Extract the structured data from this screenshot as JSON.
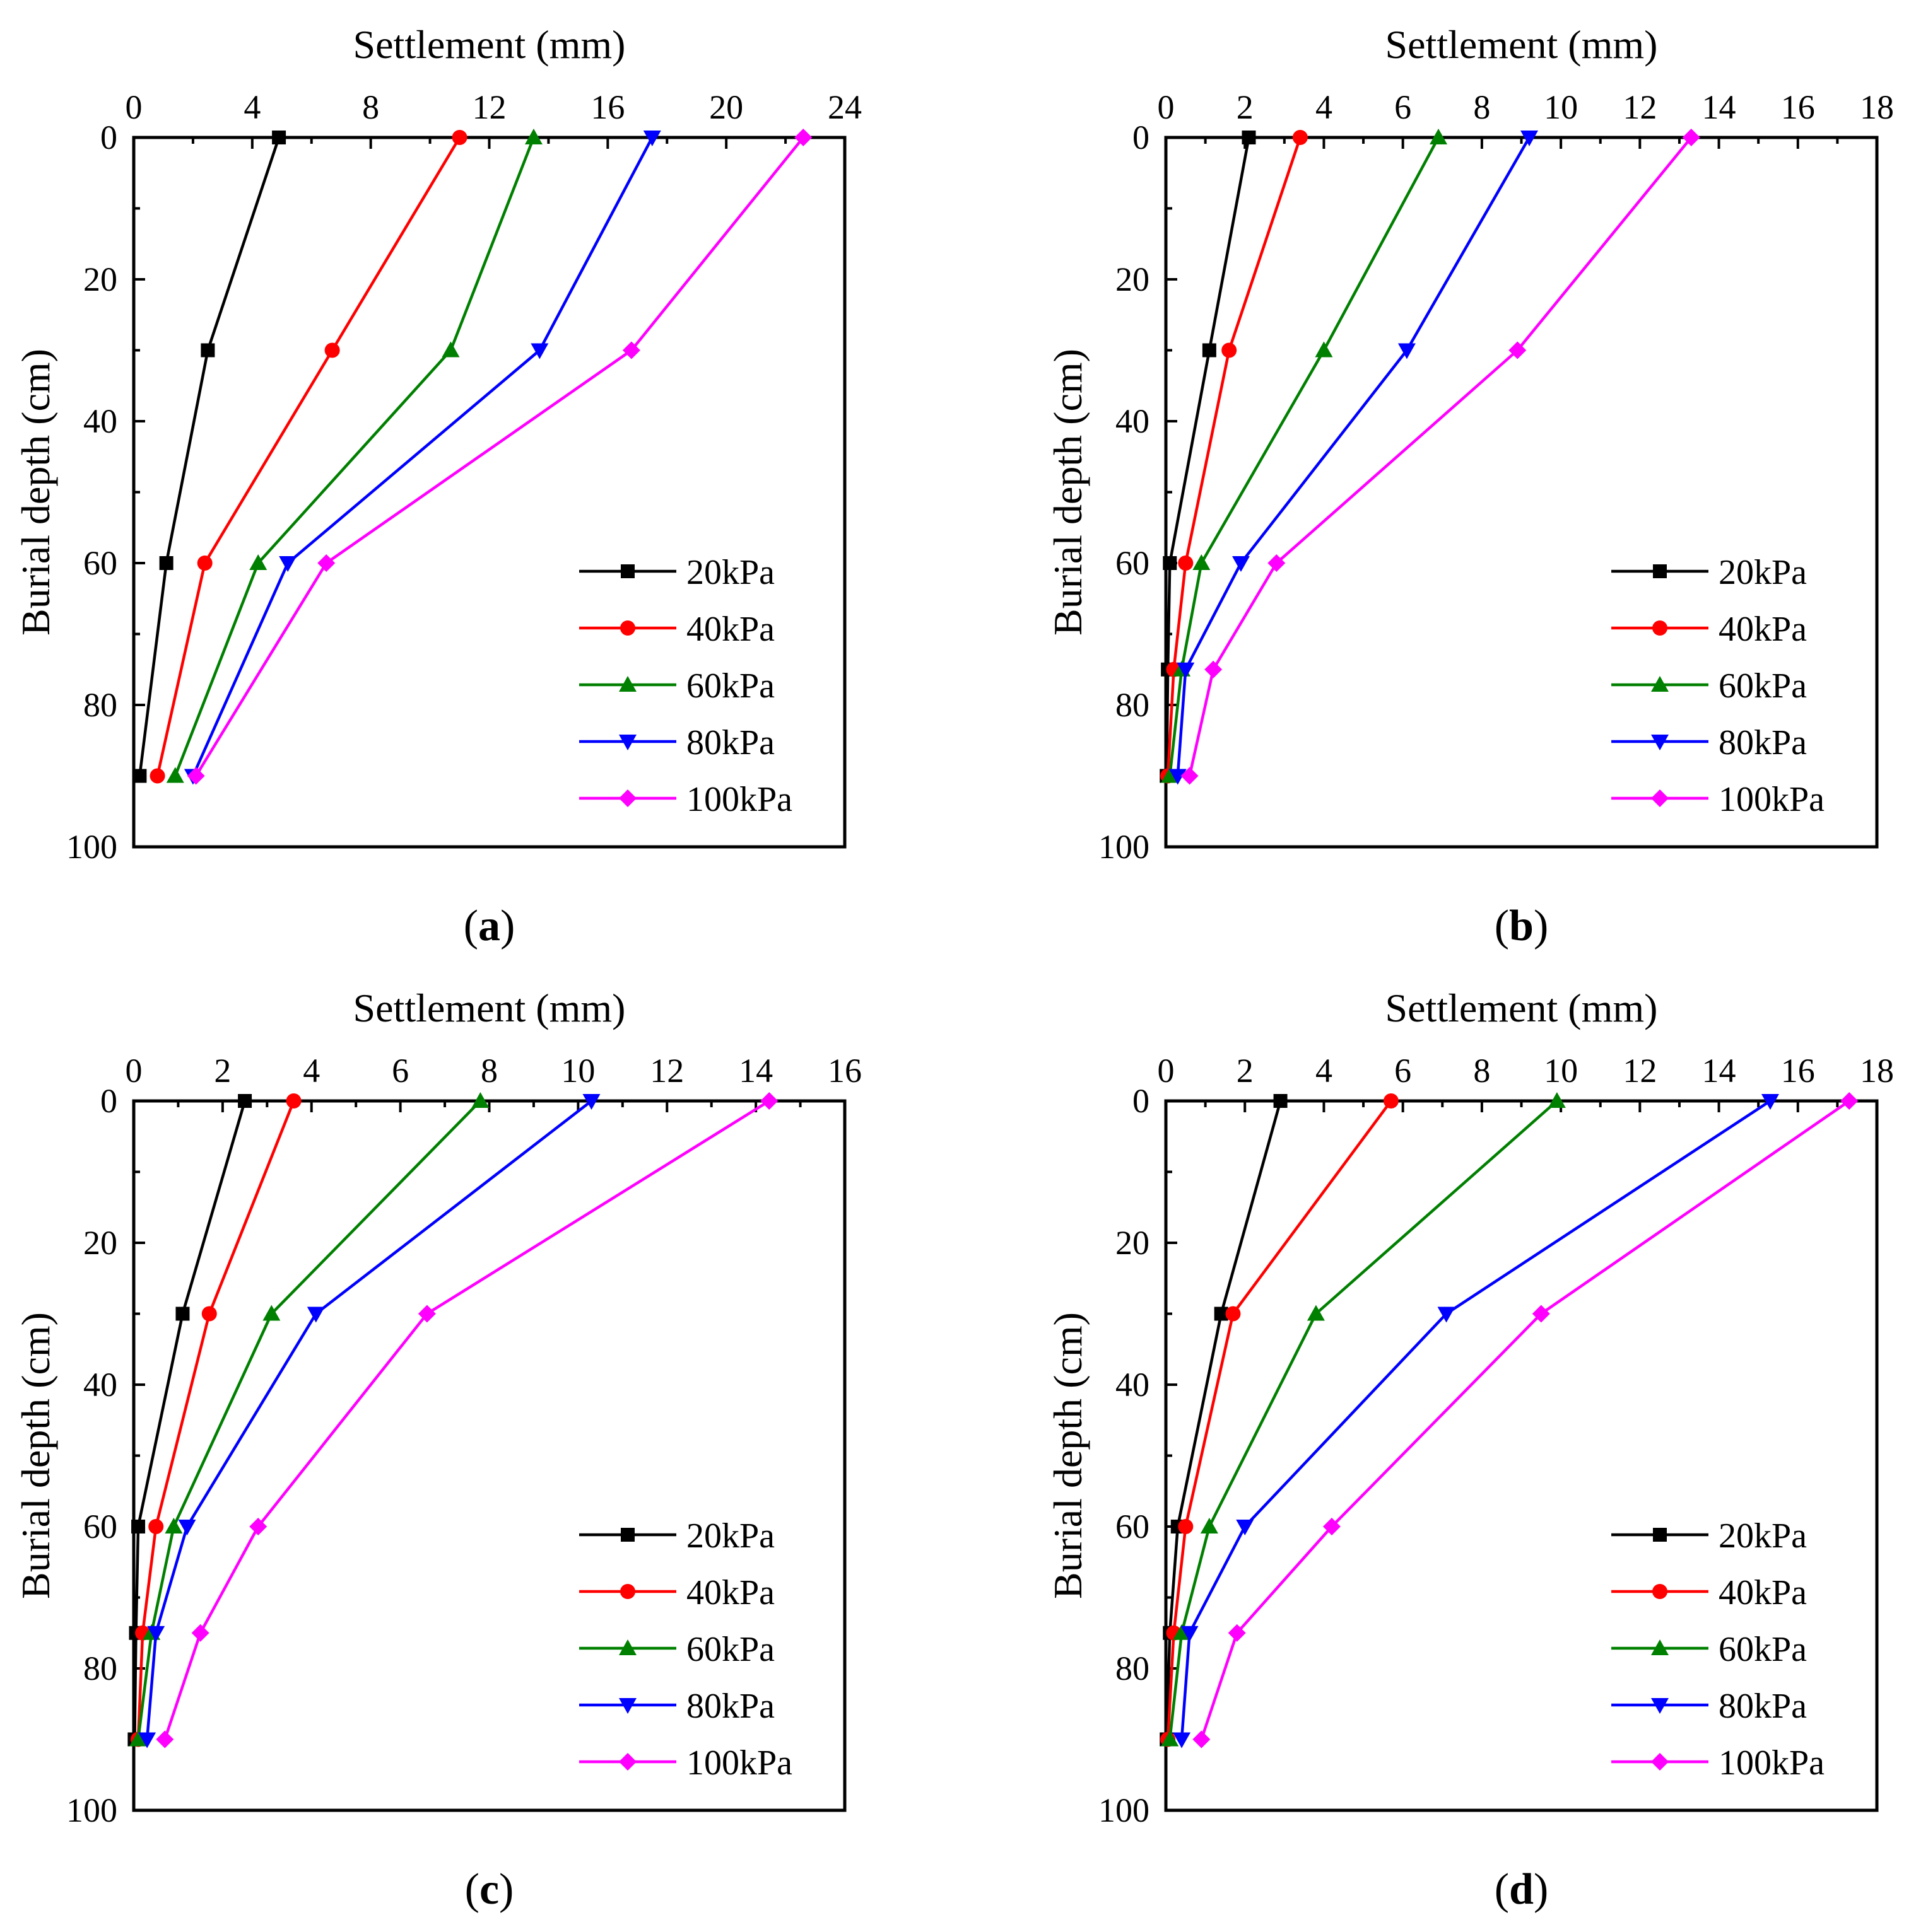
{
  "chart_data": [
    {
      "type": "line",
      "panel_label": "(a)",
      "xlabel": "Settlement (mm)",
      "ylabel": "Burial depth (cm)",
      "xlim": [
        0,
        24
      ],
      "ylim": [
        0,
        100
      ],
      "xticks": [
        0,
        4,
        8,
        12,
        16,
        20,
        24
      ],
      "yticks": [
        0,
        20,
        40,
        60,
        80,
        100
      ],
      "x_axis_position": "top",
      "y_inverted": true,
      "legend_position": "bottom-right",
      "series": [
        {
          "name": "20kPa",
          "color": "#000000",
          "marker": "square",
          "depth": [
            0,
            30,
            60,
            90
          ],
          "settlement": [
            4.9,
            2.5,
            1.1,
            0.2
          ]
        },
        {
          "name": "40kPa",
          "color": "#ff0000",
          "marker": "circle",
          "depth": [
            0,
            30,
            60,
            90
          ],
          "settlement": [
            11.0,
            6.7,
            2.4,
            0.8
          ]
        },
        {
          "name": "60kPa",
          "color": "#008000",
          "marker": "triangle-up",
          "depth": [
            0,
            30,
            60,
            90
          ],
          "settlement": [
            13.5,
            10.7,
            4.2,
            1.4
          ]
        },
        {
          "name": "80kPa",
          "color": "#0000ff",
          "marker": "triangle-down",
          "depth": [
            0,
            30,
            60,
            90
          ],
          "settlement": [
            17.5,
            13.7,
            5.2,
            2.0
          ]
        },
        {
          "name": "100kPa",
          "color": "#ff00ff",
          "marker": "diamond",
          "depth": [
            0,
            30,
            60,
            90
          ],
          "settlement": [
            22.6,
            16.8,
            6.5,
            2.1
          ]
        }
      ]
    },
    {
      "type": "line",
      "panel_label": "(b)",
      "xlabel": "Settlement (mm)",
      "ylabel": "Burial depth (cm)",
      "xlim": [
        0,
        18
      ],
      "ylim": [
        0,
        100
      ],
      "xticks": [
        0,
        2,
        4,
        6,
        8,
        10,
        12,
        14,
        16,
        18
      ],
      "yticks": [
        0,
        20,
        40,
        60,
        80,
        100
      ],
      "x_axis_position": "top",
      "y_inverted": true,
      "legend_position": "bottom-right",
      "series": [
        {
          "name": "20kPa",
          "color": "#000000",
          "marker": "square",
          "depth": [
            0,
            30,
            60,
            75,
            90
          ],
          "settlement": [
            2.1,
            1.1,
            0.1,
            0.05,
            0.02
          ]
        },
        {
          "name": "40kPa",
          "color": "#ff0000",
          "marker": "circle",
          "depth": [
            0,
            30,
            60,
            75,
            90
          ],
          "settlement": [
            3.4,
            1.6,
            0.5,
            0.2,
            0.05
          ]
        },
        {
          "name": "60kPa",
          "color": "#008000",
          "marker": "triangle-up",
          "depth": [
            0,
            30,
            60,
            75,
            90
          ],
          "settlement": [
            6.9,
            4.0,
            0.9,
            0.4,
            0.1
          ]
        },
        {
          "name": "80kPa",
          "color": "#0000ff",
          "marker": "triangle-down",
          "depth": [
            0,
            30,
            60,
            75,
            90
          ],
          "settlement": [
            9.2,
            6.1,
            1.9,
            0.5,
            0.3
          ]
        },
        {
          "name": "100kPa",
          "color": "#ff00ff",
          "marker": "diamond",
          "depth": [
            0,
            30,
            60,
            75,
            90
          ],
          "settlement": [
            13.3,
            8.9,
            2.8,
            1.2,
            0.6
          ]
        }
      ]
    },
    {
      "type": "line",
      "panel_label": "(c)",
      "xlabel": "Settlement (mm)",
      "ylabel": "Burial depth (cm)",
      "xlim": [
        0,
        16
      ],
      "ylim": [
        0,
        100
      ],
      "xticks": [
        0,
        2,
        4,
        6,
        8,
        10,
        12,
        14,
        16
      ],
      "yticks": [
        0,
        20,
        40,
        60,
        80,
        100
      ],
      "x_axis_position": "top",
      "y_inverted": true,
      "legend_position": "bottom-right",
      "series": [
        {
          "name": "20kPa",
          "color": "#000000",
          "marker": "square",
          "depth": [
            0,
            30,
            60,
            75,
            90
          ],
          "settlement": [
            2.5,
            1.1,
            0.1,
            0.05,
            0.02
          ]
        },
        {
          "name": "40kPa",
          "color": "#ff0000",
          "marker": "circle",
          "depth": [
            0,
            30,
            60,
            75,
            90
          ],
          "settlement": [
            3.6,
            1.7,
            0.5,
            0.2,
            0.1
          ]
        },
        {
          "name": "60kPa",
          "color": "#008000",
          "marker": "triangle-up",
          "depth": [
            0,
            30,
            60,
            75,
            90
          ],
          "settlement": [
            7.8,
            3.1,
            0.9,
            0.4,
            0.1
          ]
        },
        {
          "name": "80kPa",
          "color": "#0000ff",
          "marker": "triangle-down",
          "depth": [
            0,
            30,
            60,
            75,
            90
          ],
          "settlement": [
            10.3,
            4.1,
            1.2,
            0.5,
            0.3
          ]
        },
        {
          "name": "100kPa",
          "color": "#ff00ff",
          "marker": "diamond",
          "depth": [
            0,
            30,
            60,
            75,
            90
          ],
          "settlement": [
            14.3,
            6.6,
            2.8,
            1.5,
            0.7
          ]
        }
      ]
    },
    {
      "type": "line",
      "panel_label": "(d)",
      "xlabel": "Settlement (mm)",
      "ylabel": "Burial depth (cm)",
      "xlim": [
        0,
        18
      ],
      "ylim": [
        0,
        100
      ],
      "xticks": [
        0,
        2,
        4,
        6,
        8,
        10,
        12,
        14,
        16,
        18
      ],
      "yticks": [
        0,
        20,
        40,
        60,
        80,
        100
      ],
      "x_axis_position": "top",
      "y_inverted": true,
      "legend_position": "bottom-right",
      "series": [
        {
          "name": "20kPa",
          "color": "#000000",
          "marker": "square",
          "depth": [
            0,
            30,
            60,
            75,
            90
          ],
          "settlement": [
            2.9,
            1.4,
            0.3,
            0.1,
            0.02
          ]
        },
        {
          "name": "40kPa",
          "color": "#ff0000",
          "marker": "circle",
          "depth": [
            0,
            30,
            60,
            75,
            90
          ],
          "settlement": [
            5.7,
            1.7,
            0.5,
            0.2,
            0.05
          ]
        },
        {
          "name": "60kPa",
          "color": "#008000",
          "marker": "triangle-up",
          "depth": [
            0,
            30,
            60,
            75,
            90
          ],
          "settlement": [
            9.9,
            3.8,
            1.1,
            0.4,
            0.1
          ]
        },
        {
          "name": "80kPa",
          "color": "#0000ff",
          "marker": "triangle-down",
          "depth": [
            0,
            30,
            60,
            75,
            90
          ],
          "settlement": [
            15.3,
            7.1,
            2.0,
            0.6,
            0.4
          ]
        },
        {
          "name": "100kPa",
          "color": "#ff00ff",
          "marker": "diamond",
          "depth": [
            0,
            30,
            60,
            75,
            90
          ],
          "settlement": [
            17.3,
            9.5,
            4.2,
            1.8,
            0.9
          ]
        }
      ]
    }
  ]
}
